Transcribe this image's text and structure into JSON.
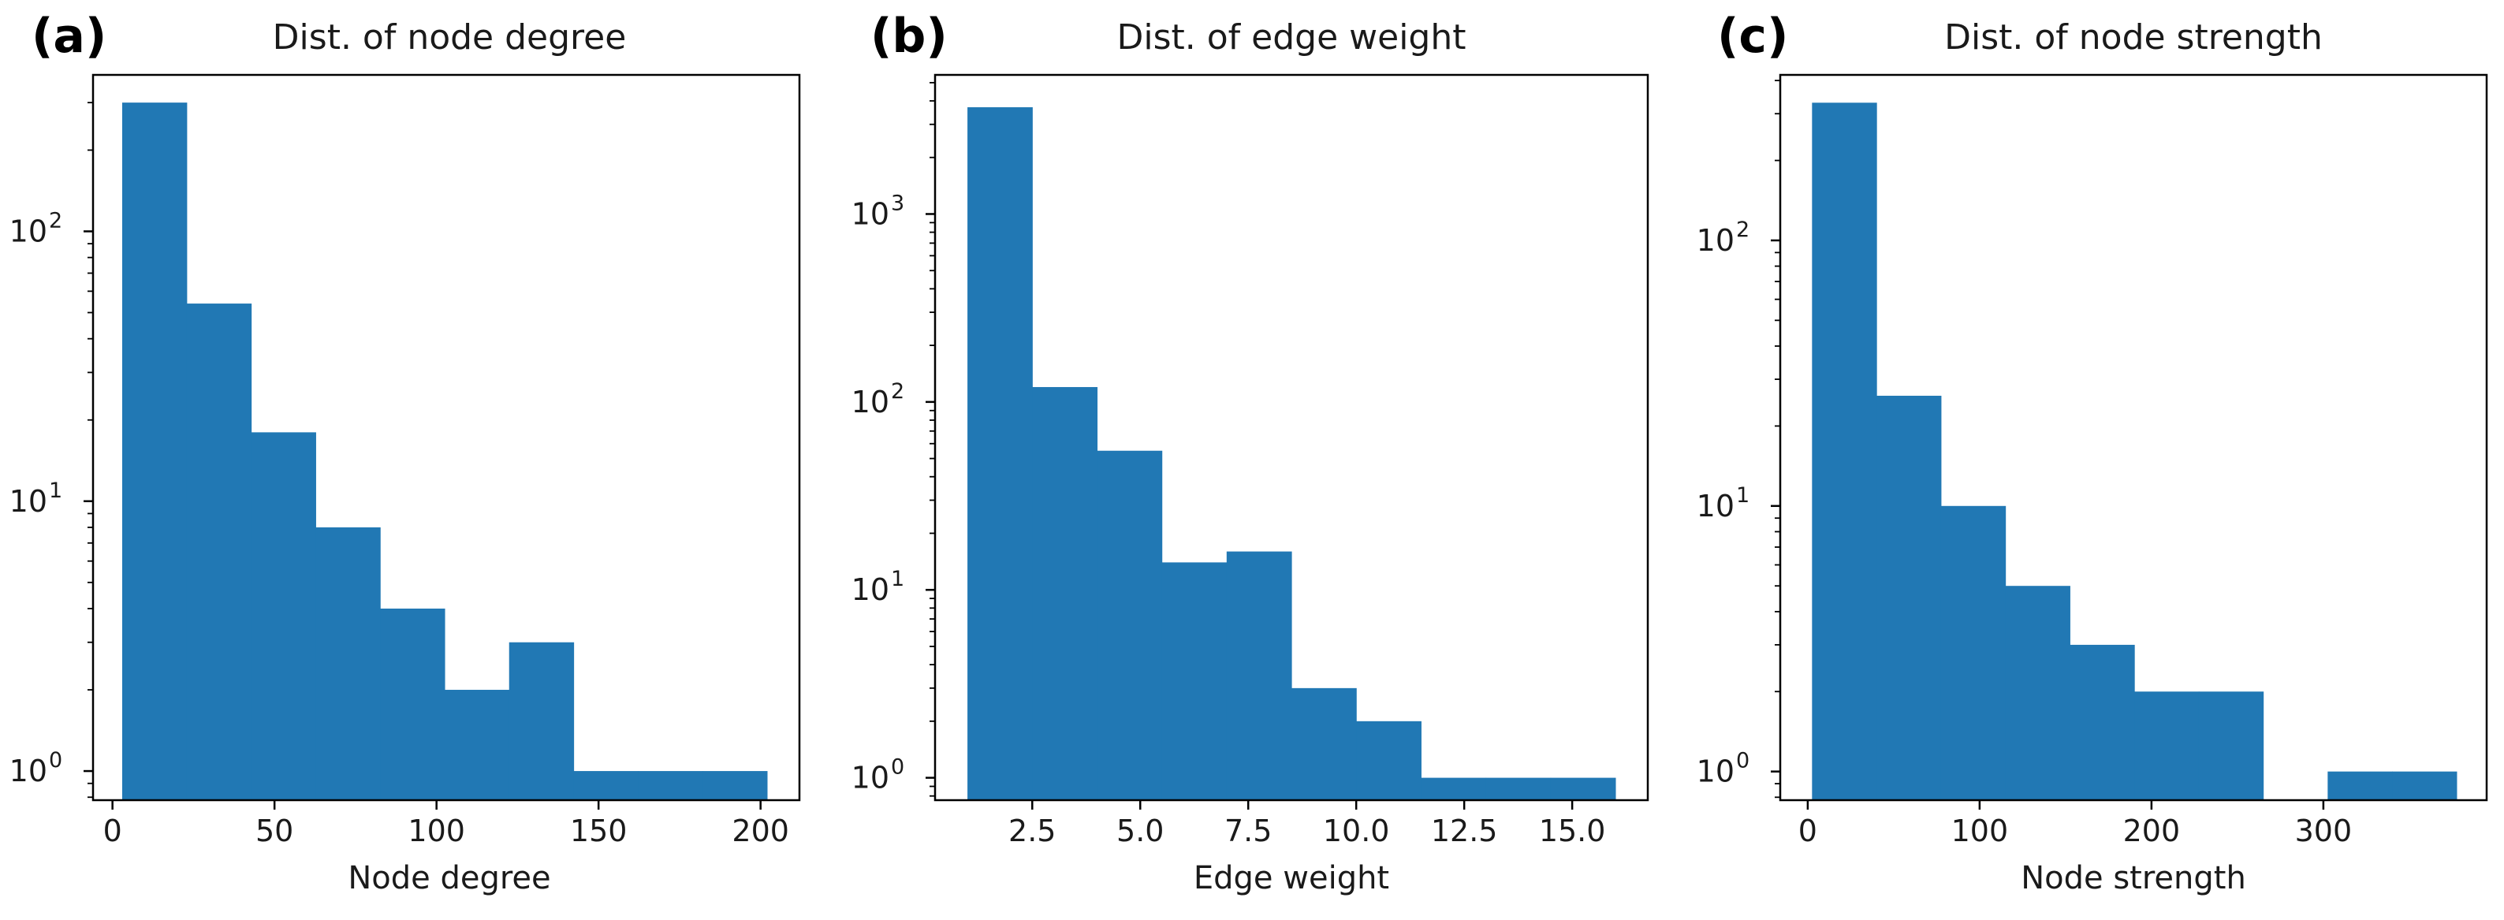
{
  "chart_data": [
    {
      "type": "bar",
      "panel_label": "(a)",
      "title": "Dist. of node degree",
      "xlabel": "Node degree",
      "ylabel": "",
      "yscale": "log",
      "xlim": [
        -6,
        212
      ],
      "ylim": [
        0.78,
        380
      ],
      "xticks": [
        0,
        50,
        100,
        150,
        200
      ],
      "xtick_labels": [
        "0",
        "50",
        "100",
        "150",
        "200"
      ],
      "yticks": [
        1,
        10,
        100
      ],
      "ytick_labels": [
        [
          "10",
          "0"
        ],
        [
          "10",
          "1"
        ],
        [
          "10",
          "2"
        ]
      ],
      "bins": [
        {
          "x0": 3,
          "x1": 22.9,
          "value": 300
        },
        {
          "x0": 22.9,
          "x1": 42.8,
          "value": 54
        },
        {
          "x0": 42.8,
          "x1": 62.7,
          "value": 18
        },
        {
          "x0": 62.7,
          "x1": 82.6,
          "value": 8
        },
        {
          "x0": 82.6,
          "x1": 102.5,
          "value": 4
        },
        {
          "x0": 102.5,
          "x1": 122.4,
          "value": 2
        },
        {
          "x0": 122.4,
          "x1": 142.3,
          "value": 3
        },
        {
          "x0": 142.3,
          "x1": 162.2,
          "value": 1
        },
        {
          "x0": 162.2,
          "x1": 182.1,
          "value": 1
        },
        {
          "x0": 182.1,
          "x1": 202,
          "value": 1
        }
      ],
      "grid": false,
      "color": "#2178b4"
    },
    {
      "type": "bar",
      "panel_label": "(b)",
      "title": "Dist. of edge weight",
      "xlabel": "Edge weight",
      "ylabel": "",
      "yscale": "log",
      "xlim": [
        0.25,
        16.75
      ],
      "ylim": [
        0.76,
        5500
      ],
      "xticks": [
        2.5,
        5.0,
        7.5,
        10.0,
        12.5,
        15.0
      ],
      "xtick_labels": [
        "2.5",
        "5.0",
        "7.5",
        "10.0",
        "12.5",
        "15.0"
      ],
      "yticks": [
        1,
        10,
        100,
        1000
      ],
      "ytick_labels": [
        [
          "10",
          "0"
        ],
        [
          "10",
          "1"
        ],
        [
          "10",
          "2"
        ],
        [
          "10",
          "3"
        ]
      ],
      "bins": [
        {
          "x0": 1,
          "x1": 2.5,
          "value": 3700
        },
        {
          "x0": 2.5,
          "x1": 4,
          "value": 120
        },
        {
          "x0": 4,
          "x1": 5.5,
          "value": 55
        },
        {
          "x0": 5.5,
          "x1": 7,
          "value": 14
        },
        {
          "x0": 7,
          "x1": 8.5,
          "value": 16
        },
        {
          "x0": 8.5,
          "x1": 10,
          "value": 3
        },
        {
          "x0": 10,
          "x1": 11.5,
          "value": 2
        },
        {
          "x0": 11.5,
          "x1": 13,
          "value": 1
        },
        {
          "x0": 13,
          "x1": 14.5,
          "value": 1
        },
        {
          "x0": 14.5,
          "x1": 16,
          "value": 1
        }
      ],
      "grid": false,
      "color": "#2178b4"
    },
    {
      "type": "bar",
      "panel_label": "(c)",
      "title": "Dist. of node strength",
      "xlabel": "Node strength",
      "ylabel": "",
      "yscale": "log",
      "xlim": [
        -16,
        395
      ],
      "ylim": [
        0.78,
        420
      ],
      "xticks": [
        0,
        100,
        200,
        300
      ],
      "xtick_labels": [
        "0",
        "100",
        "200",
        "300"
      ],
      "yticks": [
        1,
        10,
        100
      ],
      "ytick_labels": [
        [
          "10",
          "0"
        ],
        [
          "10",
          "1"
        ],
        [
          "10",
          "2"
        ]
      ],
      "bins": [
        {
          "x0": 2.5,
          "x1": 40,
          "value": 330
        },
        {
          "x0": 40,
          "x1": 77.5,
          "value": 26
        },
        {
          "x0": 77.5,
          "x1": 115,
          "value": 10
        },
        {
          "x0": 115,
          "x1": 152.5,
          "value": 5
        },
        {
          "x0": 152.5,
          "x1": 190,
          "value": 3
        },
        {
          "x0": 190,
          "x1": 227.5,
          "value": 2
        },
        {
          "x0": 227.5,
          "x1": 265,
          "value": 2
        },
        {
          "x0": 265,
          "x1": 302.5,
          "value": 0
        },
        {
          "x0": 302.5,
          "x1": 340,
          "value": 1
        },
        {
          "x0": 340,
          "x1": 377.5,
          "value": 1
        }
      ],
      "grid": false,
      "color": "#2178b4"
    }
  ]
}
